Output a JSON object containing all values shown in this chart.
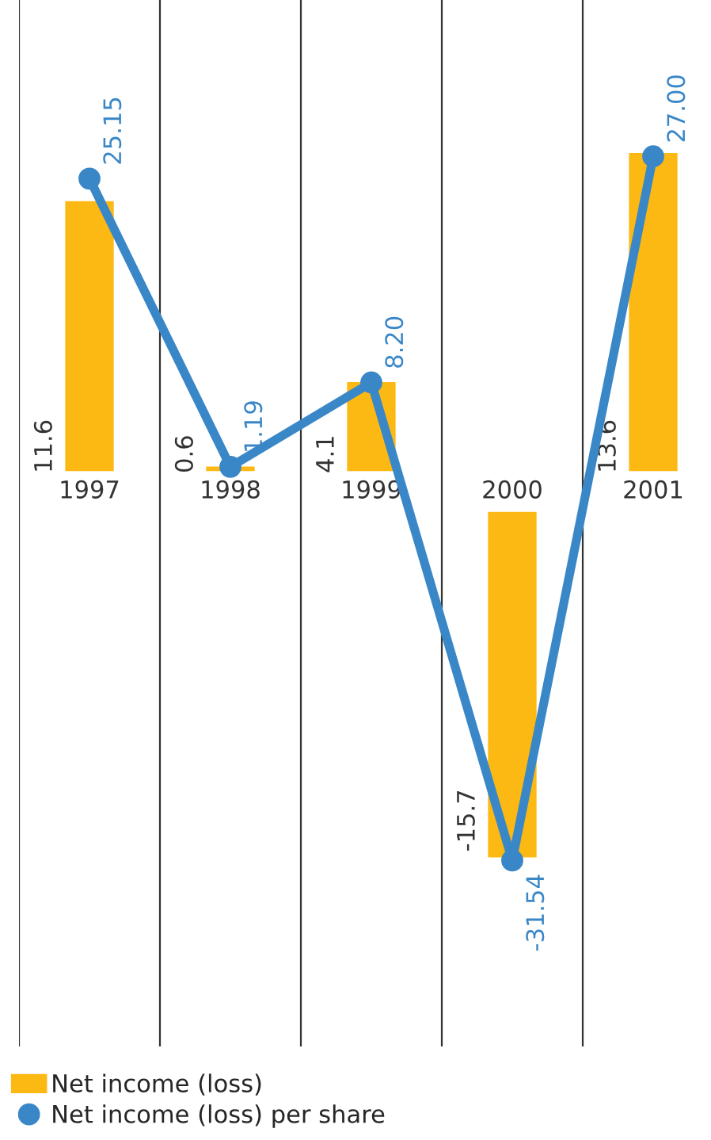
{
  "chart_data": {
    "type": "bar",
    "categories": [
      "1997",
      "1998",
      "1999",
      "2000",
      "2001"
    ],
    "series": [
      {
        "name": "Net income (loss)",
        "color": "#fdb913",
        "values": [
          11.6,
          0.6,
          4.1,
          -15.7,
          13.6
        ]
      },
      {
        "name": "Net income (loss) per share",
        "type": "line",
        "axis": "y2",
        "color": "#3a87c8",
        "values": [
          25.15,
          1.19,
          8.2,
          -31.54,
          27.0
        ],
        "value_labels": [
          "25.15",
          "1.19",
          "8.20",
          "-31.54",
          "27.00"
        ]
      }
    ],
    "ylim": [
      -23.5,
      19.9
    ],
    "y2lim": [
      -47,
      40
    ],
    "tick_labels": false,
    "data_labels": true,
    "grid": "x",
    "legend": "bottom",
    "marker": "circle",
    "line_style": "solid"
  }
}
